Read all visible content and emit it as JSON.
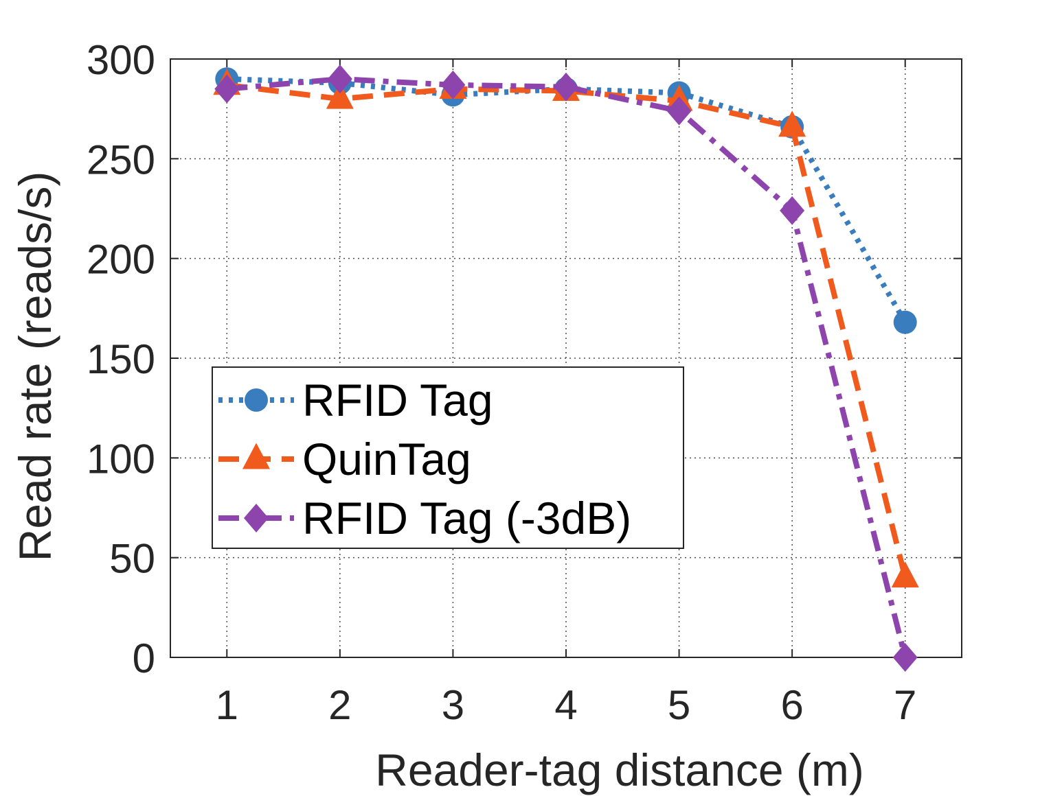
{
  "chart_data": {
    "type": "line",
    "xlabel": "Reader-tag distance (m)",
    "ylabel": "Read rate (reads/s)",
    "x": [
      1,
      2,
      3,
      4,
      5,
      6,
      7
    ],
    "xlim": [
      0.5,
      7.5
    ],
    "ylim": [
      0,
      300
    ],
    "xticks": [
      "1",
      "2",
      "3",
      "4",
      "5",
      "6",
      "7"
    ],
    "yticks": [
      "0",
      "50",
      "100",
      "150",
      "200",
      "250",
      "300"
    ],
    "grid": true,
    "legend_position": "center-left",
    "series": [
      {
        "name": "RFID Tag",
        "values": [
          290,
          288,
          282,
          285,
          283,
          266,
          168
        ],
        "color": "#3a7dbf",
        "line_style": "dotted",
        "marker": "circle"
      },
      {
        "name": "QuinTag",
        "values": [
          287,
          280,
          285,
          284,
          279,
          266,
          40
        ],
        "color": "#f05a1c",
        "line_style": "dashed",
        "marker": "triangle"
      },
      {
        "name": "RFID Tag (-3dB)",
        "values": [
          285,
          290,
          287,
          286,
          274,
          224,
          0
        ],
        "color": "#8e44ad",
        "line_style": "dash-dot",
        "marker": "diamond"
      }
    ]
  }
}
